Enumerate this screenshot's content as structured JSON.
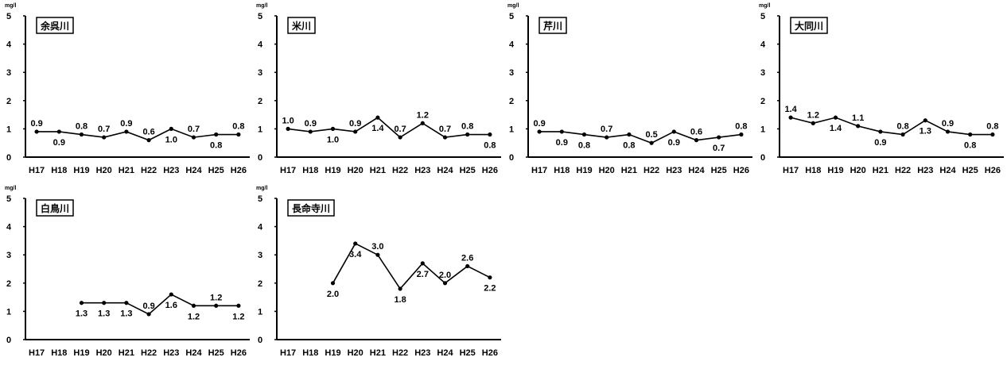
{
  "chart_data": [
    {
      "type": "line",
      "title": "余呉川",
      "unit": "mg/l",
      "categories": [
        "H17",
        "H18",
        "H19",
        "H20",
        "H21",
        "H22",
        "H23",
        "H24",
        "H25",
        "H26"
      ],
      "values": [
        0.9,
        0.9,
        0.8,
        0.7,
        0.9,
        0.6,
        1.0,
        0.7,
        0.8,
        0.8
      ],
      "ylim": [
        0,
        5
      ],
      "yticks": [
        "0",
        "1",
        "2",
        "3",
        "4",
        "5"
      ],
      "data_labels": [
        "0.9",
        "0.9",
        "0.8",
        "0.7",
        "0.9",
        "0.6",
        "1.0",
        "0.7",
        "0.8",
        "0.8"
      ]
    },
    {
      "type": "line",
      "title": "米川",
      "unit": "mg/l",
      "categories": [
        "H17",
        "H18",
        "H19",
        "H20",
        "H21",
        "H22",
        "H23",
        "H24",
        "H25",
        "H26"
      ],
      "values": [
        1.0,
        0.9,
        1.0,
        0.9,
        1.4,
        0.7,
        1.2,
        0.7,
        0.8,
        0.8
      ],
      "ylim": [
        0,
        5
      ],
      "yticks": [
        "0",
        "1",
        "2",
        "3",
        "4",
        "5"
      ],
      "data_labels": [
        "1.0",
        "0.9",
        "1.0",
        "0.9",
        "1.4",
        "0.7",
        "1.2",
        "0.7",
        "0.8",
        "0.8"
      ]
    },
    {
      "type": "line",
      "title": "芹川",
      "unit": "mg/l",
      "categories": [
        "H17",
        "H18",
        "H19",
        "H20",
        "H21",
        "H22",
        "H23",
        "H24",
        "H25",
        "H26"
      ],
      "values": [
        0.9,
        0.9,
        0.8,
        0.7,
        0.8,
        0.5,
        0.9,
        0.6,
        0.7,
        0.8
      ],
      "ylim": [
        0,
        5
      ],
      "yticks": [
        "0",
        "1",
        "2",
        "3",
        "4",
        "5"
      ],
      "data_labels": [
        "0.9",
        "0.9",
        "0.8",
        "0.7",
        "0.8",
        "0.5",
        "0.9",
        "0.6",
        "0.7",
        "0.8"
      ]
    },
    {
      "type": "line",
      "title": "大同川",
      "unit": "mg/l",
      "categories": [
        "H17",
        "H18",
        "H19",
        "H20",
        "H21",
        "H22",
        "H23",
        "H24",
        "H25",
        "H26"
      ],
      "values": [
        1.4,
        1.2,
        1.4,
        1.1,
        0.9,
        0.8,
        1.3,
        0.9,
        0.8,
        0.8
      ],
      "ylim": [
        0,
        5
      ],
      "yticks": [
        "0",
        "1",
        "2",
        "3",
        "4",
        "5"
      ],
      "data_labels": [
        "1.4",
        "1.2",
        "1.4",
        "1.1",
        "0.9",
        "0.8",
        "1.3",
        "0.9",
        "0.8",
        "0.8"
      ]
    },
    {
      "type": "line",
      "title": "白鳥川",
      "unit": "mg/l",
      "categories": [
        "H17",
        "H18",
        "H19",
        "H20",
        "H21",
        "H22",
        "H23",
        "H24",
        "H25",
        "H26"
      ],
      "values": [
        null,
        null,
        1.3,
        1.3,
        1.3,
        0.9,
        1.6,
        1.2,
        1.2,
        1.2
      ],
      "ylim": [
        0,
        5
      ],
      "yticks": [
        "0",
        "1",
        "2",
        "3",
        "4",
        "5"
      ],
      "data_labels": [
        "",
        "",
        "1.3",
        "1.3",
        "1.3",
        "0.9",
        "1.6",
        "1.2",
        "1.2",
        "1.2"
      ]
    },
    {
      "type": "line",
      "title": "長命寺川",
      "unit": "mg/l",
      "categories": [
        "H17",
        "H18",
        "H19",
        "H20",
        "H21",
        "H22",
        "H23",
        "H24",
        "H25",
        "H26"
      ],
      "values": [
        null,
        null,
        2.0,
        3.4,
        3.0,
        1.8,
        2.7,
        2.0,
        2.6,
        2.2
      ],
      "ylim": [
        0,
        5
      ],
      "yticks": [
        "0",
        "1",
        "2",
        "3",
        "4",
        "5"
      ],
      "data_labels": [
        "",
        "",
        "2.0",
        "3.4",
        "3.0",
        "1.8",
        "2.7",
        "2.0",
        "2.6",
        "2.2"
      ]
    }
  ]
}
